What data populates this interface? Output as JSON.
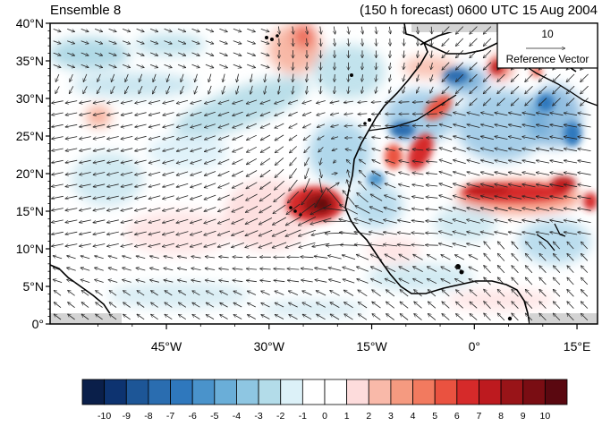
{
  "title_left": "Ensemble 8",
  "title_right": "(150 h forecast) 0600 UTC 15 Aug 2004",
  "map": {
    "lon_range": [
      -62,
      18
    ],
    "lat_range": [
      0,
      40
    ],
    "lat_ticks": [
      "0°",
      "5°N",
      "10°N",
      "15°N",
      "20°N",
      "25°N",
      "30°N",
      "35°N",
      "40°N"
    ],
    "lat_tick_values": [
      0,
      5,
      10,
      15,
      20,
      25,
      30,
      35,
      40
    ],
    "lon_ticks": [
      "45°W",
      "30°W",
      "15°W",
      "0°",
      "15°E"
    ],
    "lon_tick_values": [
      -45,
      -30,
      -15,
      0,
      15
    ]
  },
  "reference_vector": {
    "value": "10",
    "label": "Reference Vector"
  },
  "colorbar": {
    "labels": [
      "-10",
      "-9",
      "-8",
      "-7",
      "-6",
      "-5",
      "-4",
      "-3",
      "-2",
      "-1",
      "0",
      "1",
      "2",
      "3",
      "4",
      "5",
      "6",
      "7",
      "8",
      "9",
      "10"
    ],
    "colors": [
      "#0a1f4a",
      "#0d3370",
      "#1d5697",
      "#2a6db0",
      "#2f78bd",
      "#4a93cb",
      "#6aaed8",
      "#8ec6e2",
      "#b3dce9",
      "#dcf1f8",
      "#ffffff",
      "#ffffff",
      "#fddcdc",
      "#f9b9a9",
      "#f59a80",
      "#f27a5f",
      "#ea5240",
      "#d62a2a",
      "#bd1a1f",
      "#991418",
      "#7a0d13",
      "#5a0810"
    ]
  },
  "features": {
    "vortex_center": [
      -21,
      17
    ]
  }
}
